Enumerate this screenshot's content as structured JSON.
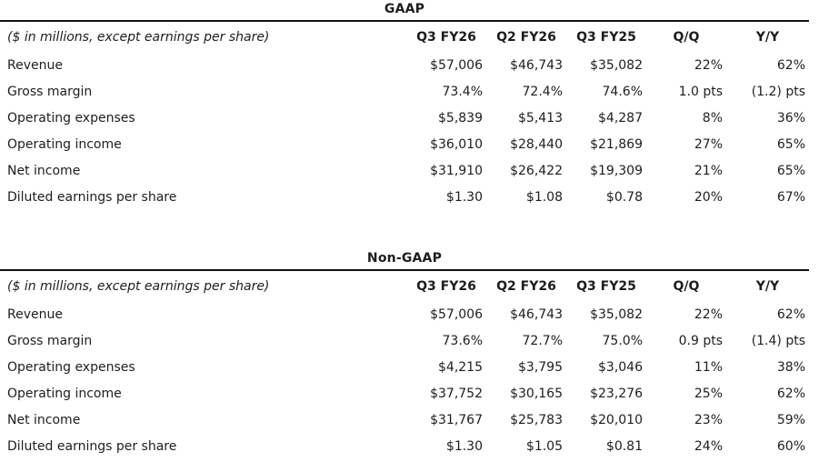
{
  "tables": [
    {
      "title": "GAAP",
      "note": "($ in millions, except earnings per share)",
      "columns": [
        "Q3 FY26",
        "Q2 FY26",
        "Q3 FY25",
        "Q/Q",
        "Y/Y"
      ],
      "rows": [
        {
          "label": "Revenue",
          "values": [
            "$57,006",
            "$46,743",
            "$35,082",
            "22%",
            "62%"
          ]
        },
        {
          "label": "Gross margin",
          "values": [
            "73.4%",
            "72.4%",
            "74.6%",
            "1.0 pts",
            "(1.2) pts"
          ]
        },
        {
          "label": "Operating expenses",
          "values": [
            "$5,839",
            "$5,413",
            "$4,287",
            "8%",
            "36%"
          ]
        },
        {
          "label": "Operating income",
          "values": [
            "$36,010",
            "$28,440",
            "$21,869",
            "27%",
            "65%"
          ]
        },
        {
          "label": "Net income",
          "values": [
            "$31,910",
            "$26,422",
            "$19,309",
            "21%",
            "65%"
          ]
        },
        {
          "label": "Diluted earnings per share",
          "values": [
            "$1.30",
            "$1.08",
            "$0.78",
            "20%",
            "67%"
          ]
        }
      ]
    },
    {
      "title": "Non-GAAP",
      "note": "($ in millions, except earnings per share)",
      "columns": [
        "Q3 FY26",
        "Q2 FY26",
        "Q3 FY25",
        "Q/Q",
        "Y/Y"
      ],
      "rows": [
        {
          "label": "Revenue",
          "values": [
            "$57,006",
            "$46,743",
            "$35,082",
            "22%",
            "62%"
          ]
        },
        {
          "label": "Gross margin",
          "values": [
            "73.6%",
            "72.7%",
            "75.0%",
            "0.9 pts",
            "(1.4) pts"
          ]
        },
        {
          "label": "Operating expenses",
          "values": [
            "$4,215",
            "$3,795",
            "$3,046",
            "11%",
            "38%"
          ]
        },
        {
          "label": "Operating income",
          "values": [
            "$37,752",
            "$30,165",
            "$23,276",
            "25%",
            "62%"
          ]
        },
        {
          "label": "Net income",
          "values": [
            "$31,767",
            "$25,783",
            "$20,010",
            "23%",
            "59%"
          ]
        },
        {
          "label": "Diluted earnings per share",
          "values": [
            "$1.30",
            "$1.05",
            "$0.81",
            "24%",
            "60%"
          ]
        }
      ]
    }
  ]
}
